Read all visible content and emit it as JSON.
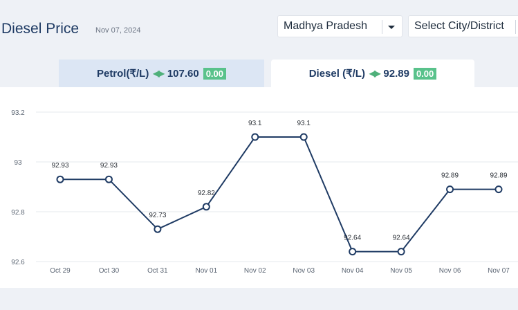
{
  "header": {
    "title": "Diesel Price",
    "date": "Nov 07, 2024",
    "state_select": "Madhya Pradesh",
    "city_select": "Select City/District"
  },
  "tabs": [
    {
      "label": "Petrol(₹/L)",
      "price": "107.60",
      "change": "0.00"
    },
    {
      "label": "Diesel (₹/L)",
      "price": "92.89",
      "change": "0.00"
    }
  ],
  "colors": {
    "line": "#1f3b64",
    "badge": "#59c28b",
    "tab_inactive": "#dce6f4"
  },
  "chart_data": {
    "type": "line",
    "categories": [
      "Oct 29",
      "Oct 30",
      "Oct 31",
      "Nov 01",
      "Nov 02",
      "Nov 03",
      "Nov 04",
      "Nov 05",
      "Nov 06",
      "Nov 07"
    ],
    "series": [
      {
        "values": [
          92.93,
          92.93,
          92.73,
          92.82,
          93.1,
          93.1,
          92.64,
          92.64,
          92.89,
          92.89
        ],
        "labels": [
          "92.93",
          "92.93",
          "92.73",
          "92.82",
          "93.1",
          "93.1",
          "92.64",
          "92.64",
          "92.89",
          "92.89"
        ]
      }
    ],
    "yticks": [
      "92.6",
      "92.8",
      "93",
      "93.2"
    ],
    "ylim": [
      92.6,
      93.2
    ],
    "grid": true
  }
}
